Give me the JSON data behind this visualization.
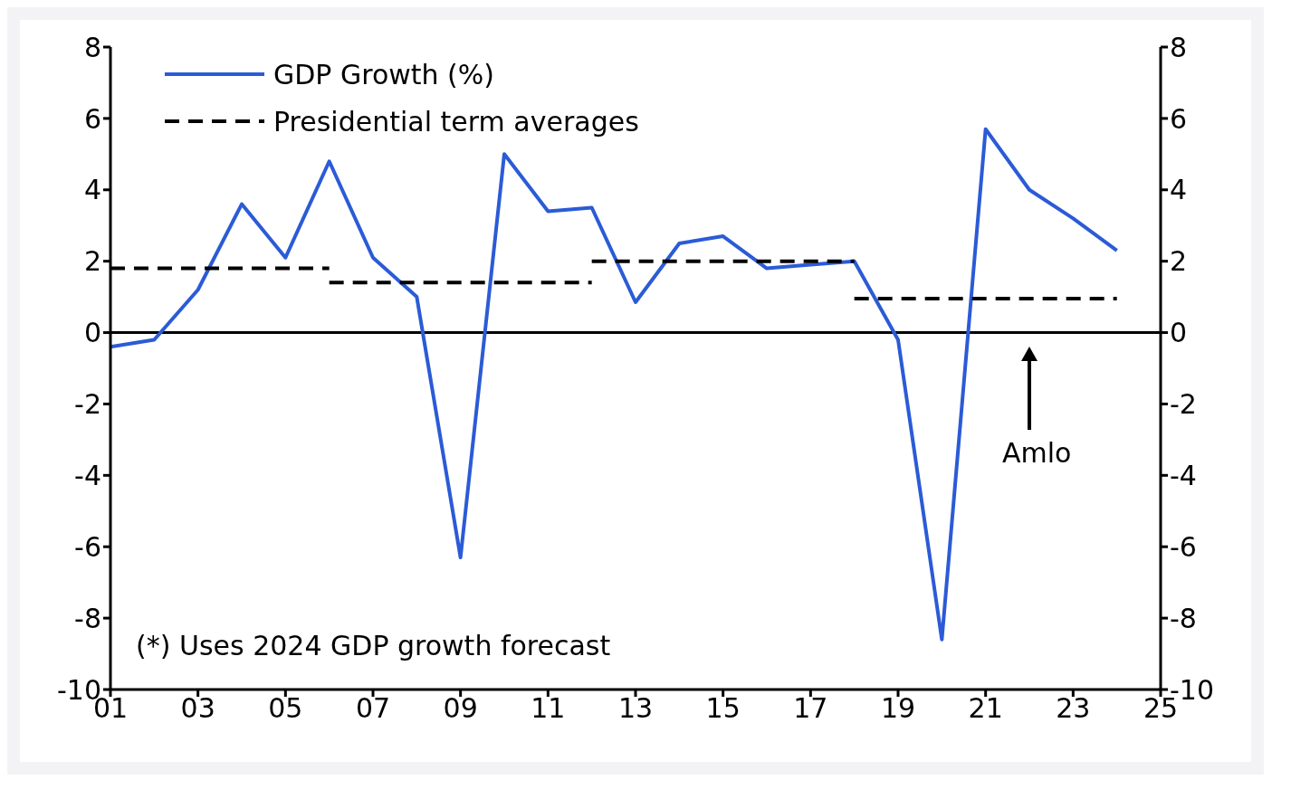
{
  "chart_data": {
    "type": "line",
    "x": [
      2001,
      2002,
      2003,
      2004,
      2005,
      2006,
      2007,
      2008,
      2009,
      2010,
      2011,
      2012,
      2013,
      2014,
      2015,
      2016,
      2017,
      2018,
      2019,
      2020,
      2021,
      2022,
      2023,
      2024
    ],
    "series": [
      {
        "name": "GDP Growth (%)",
        "color": "#2b5bd6",
        "line_style": "solid",
        "values": [
          -0.4,
          -0.2,
          1.2,
          3.6,
          2.1,
          4.8,
          2.1,
          1.0,
          -6.3,
          5.0,
          3.4,
          3.5,
          0.85,
          2.5,
          2.7,
          1.8,
          1.9,
          2.0,
          -0.2,
          -8.6,
          5.7,
          4.0,
          3.2,
          2.3
        ]
      },
      {
        "name": "Presidential term averages",
        "color": "#000000",
        "line_style": "dashed",
        "x": [
          2001,
          2006
        ],
        "values": [
          1.8,
          1.8
        ]
      },
      {
        "color": "#000000",
        "line_style": "dashed",
        "x": [
          2006,
          2012
        ],
        "values": [
          1.4,
          1.4
        ]
      },
      {
        "color": "#000000",
        "line_style": "dashed",
        "x": [
          2012,
          2018
        ],
        "values": [
          2.0,
          2.0
        ]
      },
      {
        "color": "#000000",
        "line_style": "dashed",
        "x": [
          2018,
          2024
        ],
        "values": [
          0.95,
          0.95
        ]
      }
    ],
    "xlim": [
      2001,
      2025
    ],
    "xticks": [
      {
        "value": 2001,
        "label": "01"
      },
      {
        "value": 2003,
        "label": "03"
      },
      {
        "value": 2005,
        "label": "05"
      },
      {
        "value": 2007,
        "label": "07"
      },
      {
        "value": 2009,
        "label": "09"
      },
      {
        "value": 2011,
        "label": "11"
      },
      {
        "value": 2013,
        "label": "13"
      },
      {
        "value": 2015,
        "label": "15"
      },
      {
        "value": 2017,
        "label": "17"
      },
      {
        "value": 2019,
        "label": "19"
      },
      {
        "value": 2021,
        "label": "21"
      },
      {
        "value": 2023,
        "label": "23"
      },
      {
        "value": 2025,
        "label": "25"
      }
    ],
    "ylim": [
      -10,
      8
    ],
    "yticks": [
      -10,
      -8,
      -6,
      -4,
      -2,
      0,
      2,
      4,
      6,
      8
    ],
    "y2lim": [
      -10,
      8
    ],
    "y2ticks": [
      -10,
      -8,
      -6,
      -4,
      -2,
      0,
      2,
      4,
      6,
      8
    ],
    "ref_lines": [
      {
        "axis": "y",
        "value": 0,
        "color": "#000000"
      }
    ],
    "annotations": [
      "Amlo",
      "(*) Uses 2024 GDP growth forecast"
    ],
    "grid": false,
    "legend": "top left",
    "marker": "none"
  }
}
